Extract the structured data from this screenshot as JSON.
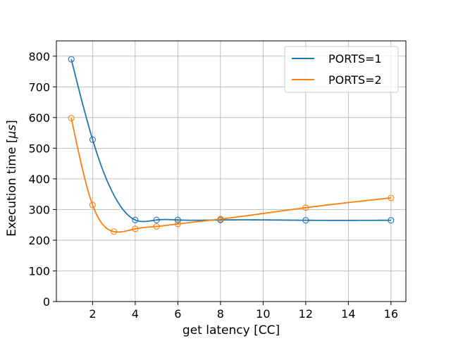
{
  "chart_data": {
    "type": "line",
    "title": "",
    "xlabel": "get latency [CC]",
    "ylabel": "Execution time [",
    "ylabel_unit": "μs",
    "ylabel_close": "]",
    "xlim": [
      0.3,
      16.7
    ],
    "ylim": [
      0,
      850
    ],
    "xticks": [
      2,
      4,
      6,
      8,
      10,
      12,
      14,
      16
    ],
    "yticks": [
      0,
      100,
      200,
      300,
      400,
      500,
      600,
      700,
      800
    ],
    "grid": true,
    "legend_position": "top-right",
    "series": [
      {
        "name": "PORTS=1",
        "color": "#1f77b4",
        "x": [
          1,
          2,
          4,
          5,
          6,
          8,
          12,
          16
        ],
        "y": [
          790,
          528,
          266,
          266,
          266,
          266,
          265,
          265
        ]
      },
      {
        "name": "PORTS=2",
        "color": "#ff7f0e",
        "x": [
          1,
          2,
          3,
          4,
          5,
          6,
          8,
          12,
          16
        ],
        "y": [
          598,
          315,
          228,
          237,
          245,
          253,
          269,
          306,
          338
        ]
      }
    ]
  }
}
